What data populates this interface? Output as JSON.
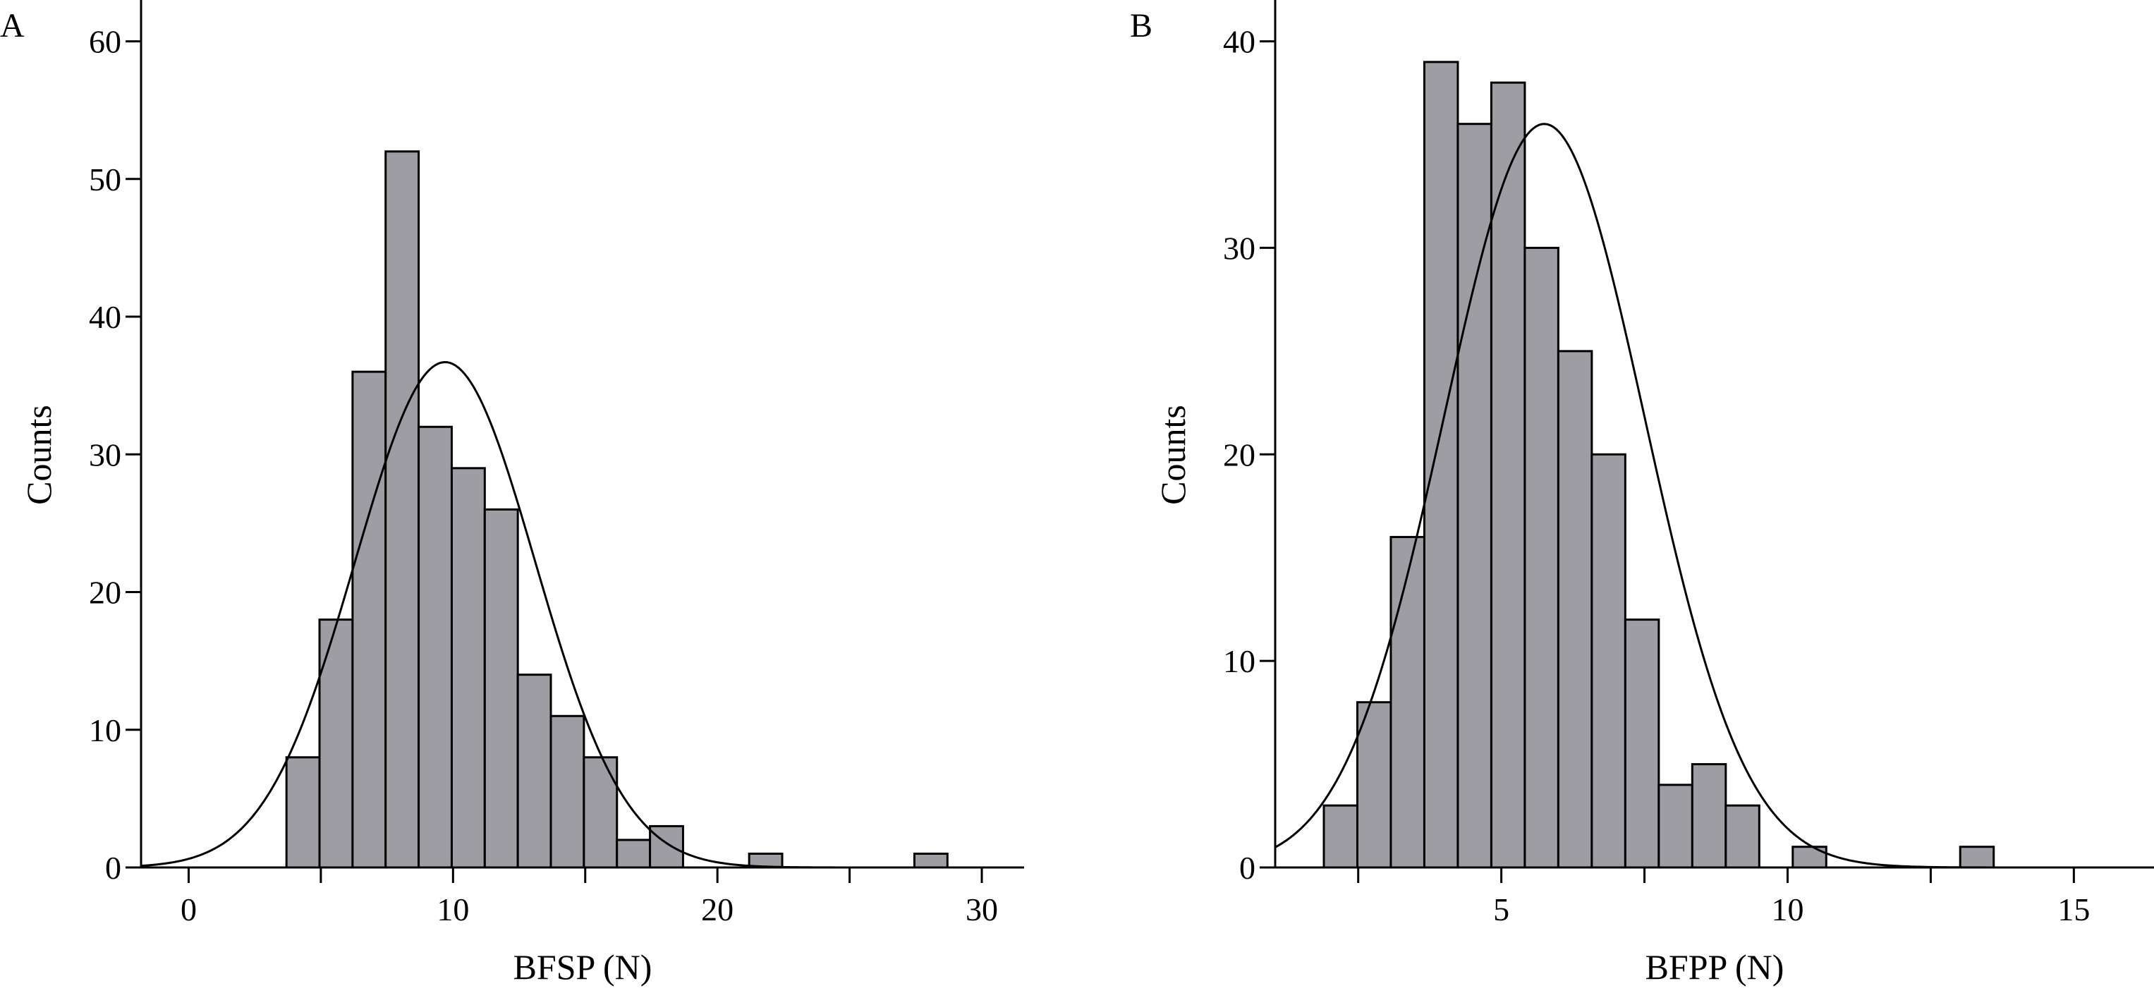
{
  "chart_data": [
    {
      "panel_label": "A",
      "type": "bar",
      "xlabel": "BFSP (N)",
      "ylabel": "Counts",
      "xlim": [
        -1.8,
        31.6
      ],
      "ylim": [
        0,
        63
      ],
      "xticks": [
        0,
        10,
        20,
        30
      ],
      "xticks_minor": [
        5,
        15,
        25
      ],
      "yticks": [
        0,
        10,
        20,
        30,
        40,
        50,
        60
      ],
      "bar_color": "#9f9da4",
      "bin_edges": [
        3.7,
        4.95,
        6.2,
        7.45,
        8.7,
        9.95,
        11.2,
        12.45,
        13.7,
        14.95,
        16.2,
        17.45,
        18.7,
        19.95,
        21.2,
        22.45,
        23.7,
        24.95,
        26.2,
        27.45,
        28.7
      ],
      "counts": [
        8,
        18,
        36,
        52,
        32,
        29,
        26,
        14,
        11,
        8,
        2,
        3,
        0,
        0,
        1,
        0,
        0,
        0,
        0,
        1
      ],
      "fit": {
        "type": "normal",
        "mean": 9.7,
        "sd": 3.4,
        "peak": 36.7
      }
    },
    {
      "panel_label": "B",
      "type": "bar",
      "xlabel": "BFPP (N)",
      "ylabel": "Counts",
      "xlim": [
        1.05,
        16.4
      ],
      "ylim": [
        0,
        42
      ],
      "xticks": [
        5,
        10,
        15
      ],
      "xticks_minor": [
        2.5,
        7.5,
        12.5
      ],
      "yticks": [
        0,
        10,
        20,
        30,
        40
      ],
      "bar_color": "#9f9da4",
      "bin_edges": [
        1.9,
        2.485,
        3.07,
        3.655,
        4.24,
        4.825,
        5.41,
        5.995,
        6.58,
        7.165,
        7.75,
        8.335,
        8.92,
        9.505,
        10.09,
        10.675,
        11.26,
        11.845,
        12.43,
        13.015,
        13.6,
        14.185,
        14.77
      ],
      "counts": [
        3,
        8,
        16,
        39,
        36,
        38,
        30,
        25,
        20,
        12,
        4,
        5,
        3,
        0,
        1,
        0,
        0,
        0,
        0,
        1,
        0,
        0
      ],
      "fit": {
        "type": "normal",
        "mean": 5.75,
        "sd": 1.75,
        "peak": 36.0
      }
    }
  ]
}
